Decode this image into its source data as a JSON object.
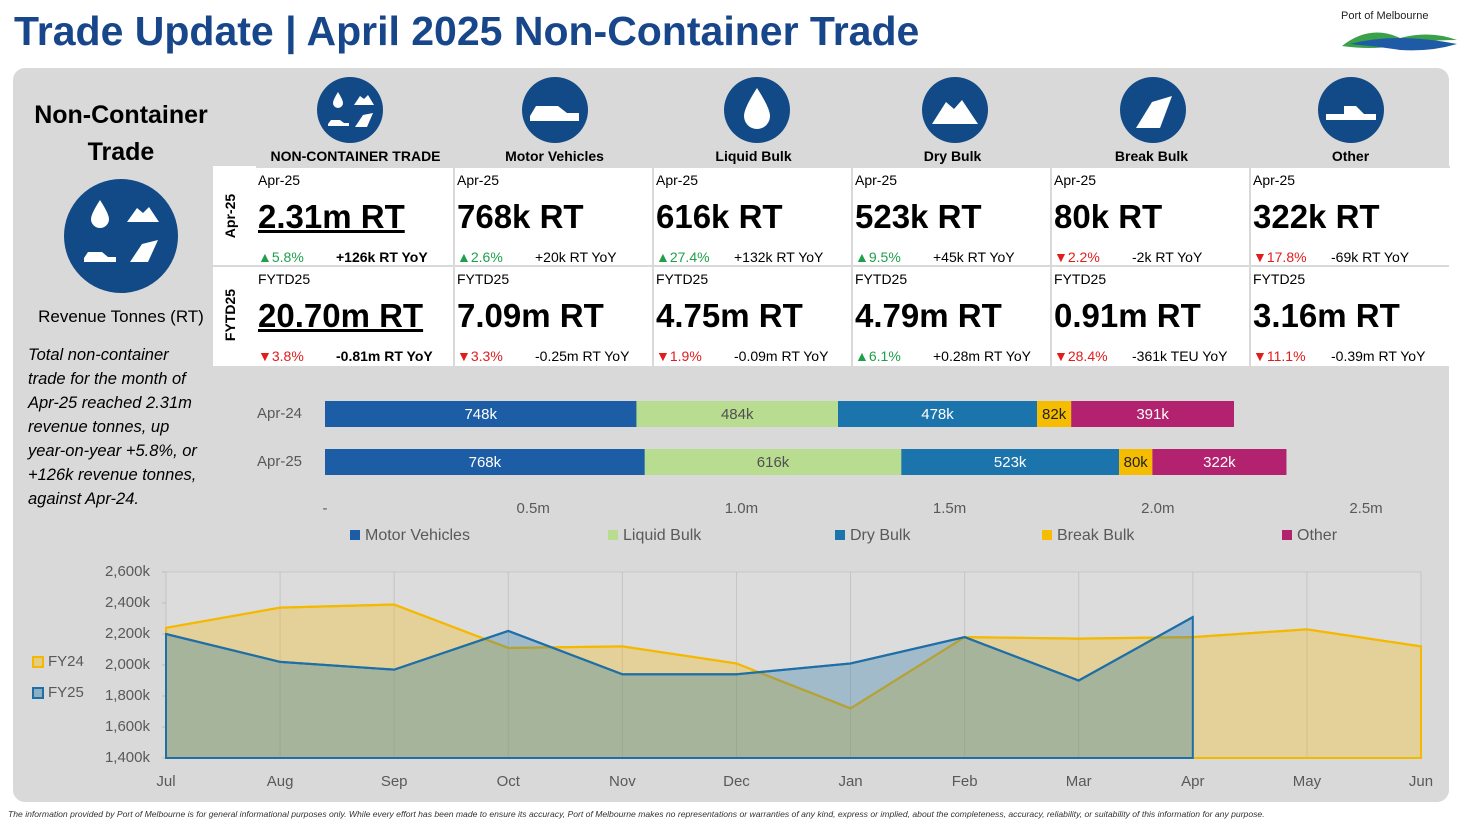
{
  "header": {
    "title": "Trade Update | April 2025 Non-Container Trade",
    "logo": "Port of Melbourne"
  },
  "sidebar": {
    "title_lines": [
      "Non-Container",
      "Trade"
    ],
    "subtitle": "Revenue Tonnes (RT)",
    "description": "Total non-container trade for the month of Apr-25 reached 2.31m revenue tonnes, up year-on-year +5.8%, or +126k revenue tonnes, against Apr-24."
  },
  "cards": {
    "row_labels": [
      "Apr-25",
      "FYTD25"
    ],
    "columns": [
      {
        "name": "NON-CONTAINER TRADE",
        "month": {
          "label": "Apr-25",
          "value": "2.31m RT",
          "change": "▲5.8%",
          "change_color": "#1ea04a",
          "yoy": "+126k RT YoY"
        },
        "fytd": {
          "label": "FYTD25",
          "value": "20.70m RT",
          "change": "▼3.8%",
          "change_color": "#e31b1b",
          "yoy": "-0.81m RT YoY"
        }
      },
      {
        "name": "Motor Vehicles",
        "month": {
          "label": "Apr-25",
          "value": "768k RT",
          "change": "▲2.6%",
          "change_color": "#1ea04a",
          "yoy": "+20k RT YoY"
        },
        "fytd": {
          "label": "FYTD25",
          "value": "7.09m RT",
          "change": "▼3.3%",
          "change_color": "#e31b1b",
          "yoy": "-0.25m RT YoY"
        }
      },
      {
        "name": "Liquid Bulk",
        "month": {
          "label": "Apr-25",
          "value": "616k RT",
          "change": "▲27.4%",
          "change_color": "#1ea04a",
          "yoy": "+132k RT YoY"
        },
        "fytd": {
          "label": "FYTD25",
          "value": "4.75m RT",
          "change": "▼1.9%",
          "change_color": "#e31b1b",
          "yoy": "-0.09m RT YoY"
        }
      },
      {
        "name": "Dry Bulk",
        "month": {
          "label": "Apr-25",
          "value": "523k RT",
          "change": "▲9.5%",
          "change_color": "#1ea04a",
          "yoy": "+45k RT YoY"
        },
        "fytd": {
          "label": "FYTD25",
          "value": "4.79m RT",
          "change": "▲6.1%",
          "change_color": "#1ea04a",
          "yoy": "+0.28m RT YoY"
        }
      },
      {
        "name": "Break Bulk",
        "month": {
          "label": "Apr-25",
          "value": "80k RT",
          "change": "▼2.2%",
          "change_color": "#e31b1b",
          "yoy": "-2k RT YoY"
        },
        "fytd": {
          "label": "FYTD25",
          "value": "0.91m RT",
          "change": "▼28.4%",
          "change_color": "#e31b1b",
          "yoy": "-361k TEU YoY"
        }
      },
      {
        "name": "Other",
        "month": {
          "label": "Apr-25",
          "value": "322k RT",
          "change": "▼17.8%",
          "change_color": "#e31b1b",
          "yoy": "-69k RT YoY"
        },
        "fytd": {
          "label": "FYTD25",
          "value": "3.16m RT",
          "change": "▼11.1%",
          "change_color": "#e31b1b",
          "yoy": "-0.39m RT YoY"
        }
      }
    ]
  },
  "chart_data": [
    {
      "type": "stacked_barh",
      "categories": [
        "Apr-24",
        "Apr-25"
      ],
      "xlim": [
        0,
        2500000
      ],
      "xticks": [
        {
          "value": 0,
          "label": "-"
        },
        {
          "value": 500000,
          "label": "0.5m"
        },
        {
          "value": 1000000,
          "label": "1.0m"
        },
        {
          "value": 1500000,
          "label": "1.5m"
        },
        {
          "value": 2000000,
          "label": "2.0m"
        },
        {
          "value": 2500000,
          "label": "2.5m"
        }
      ],
      "legend": "bottom",
      "series": [
        {
          "name": "Motor Vehicles",
          "color": "#1c5da6",
          "label_color": "#ffffff",
          "values": [
            748000,
            768000
          ],
          "value_labels": [
            "748k",
            "768k"
          ]
        },
        {
          "name": "Liquid Bulk",
          "color": "#b9dd90",
          "label_color": "#505050",
          "values": [
            484000,
            616000
          ],
          "value_labels": [
            "484k",
            "616k"
          ]
        },
        {
          "name": "Dry Bulk",
          "color": "#1b74ab",
          "label_color": "#ffffff",
          "values": [
            478000,
            523000
          ],
          "value_labels": [
            "478k",
            "523k"
          ]
        },
        {
          "name": "Break Bulk",
          "color": "#f6bd00",
          "label_color": "#222222",
          "values": [
            82000,
            80000
          ],
          "value_labels": [
            "82k",
            "80k"
          ]
        },
        {
          "name": "Other",
          "color": "#b3226f",
          "label_color": "#ffffff",
          "values": [
            391000,
            322000
          ],
          "value_labels": [
            "391k",
            "322k"
          ]
        }
      ]
    },
    {
      "type": "area",
      "categories": [
        "Jul",
        "Aug",
        "Sep",
        "Oct",
        "Nov",
        "Dec",
        "Jan",
        "Feb",
        "Mar",
        "Apr",
        "May",
        "Jun"
      ],
      "ylim": [
        1400000,
        2600000
      ],
      "yticks": [
        {
          "value": 1400000,
          "label": "1,400k"
        },
        {
          "value": 1600000,
          "label": "1,600k"
        },
        {
          "value": 1800000,
          "label": "1,800k"
        },
        {
          "value": 2000000,
          "label": "2,000k"
        },
        {
          "value": 2200000,
          "label": "2,200k"
        },
        {
          "value": 2400000,
          "label": "2,400k"
        },
        {
          "value": 2600000,
          "label": "2,600k"
        }
      ],
      "grid": true,
      "legend": "left",
      "series": [
        {
          "name": "FY24",
          "color": "#f5b800",
          "values": [
            2240000,
            2370000,
            2390000,
            2110000,
            2120000,
            2010000,
            1720000,
            2180000,
            2170000,
            2180000,
            2230000,
            2120000
          ]
        },
        {
          "name": "FY25",
          "color": "#1f6fa6",
          "values": [
            2200000,
            2020000,
            1970000,
            2220000,
            1940000,
            1940000,
            2010000,
            2180000,
            1900000,
            2309000,
            null,
            null
          ]
        }
      ]
    }
  ],
  "footer": {
    "disclaimer": "The information provided by Port of Melbourne is for general informational purposes only. While every effort has been made to ensure its accuracy, Port of Melbourne makes no representations or warranties of any kind, express or implied, about the completeness, accuracy, reliability, or suitability of this information for any purpose."
  }
}
